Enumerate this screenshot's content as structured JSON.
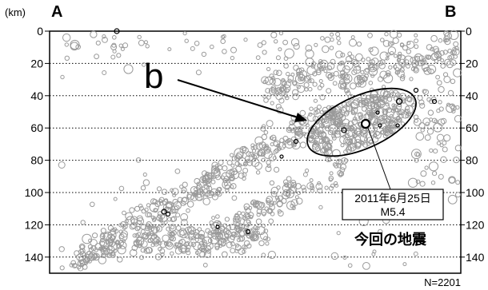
{
  "chart_data": {
    "type": "scatter",
    "title": "",
    "ylabel": "(km)",
    "xlabel": "",
    "ylim": [
      0,
      150
    ],
    "y_inverted": true,
    "yticks": [
      "0",
      "20",
      "40",
      "60",
      "80",
      "100",
      "120",
      "140"
    ],
    "right_yticks": [
      "0",
      "20",
      "40",
      "60",
      "80",
      "100",
      "120",
      "140"
    ],
    "grid": "horizontal dotted",
    "marker": "open circles, size scaled by magnitude",
    "point_color": "#9a9a9a",
    "highlight_color": "#000000",
    "section_start_label": "A",
    "section_end_label": "B",
    "cluster_label": "b",
    "main_event": {
      "date": "2011年6月25日",
      "magnitude": "M5.4",
      "caption": "今回の地震",
      "depth_km": 57
    },
    "count_label": "N=2201"
  }
}
